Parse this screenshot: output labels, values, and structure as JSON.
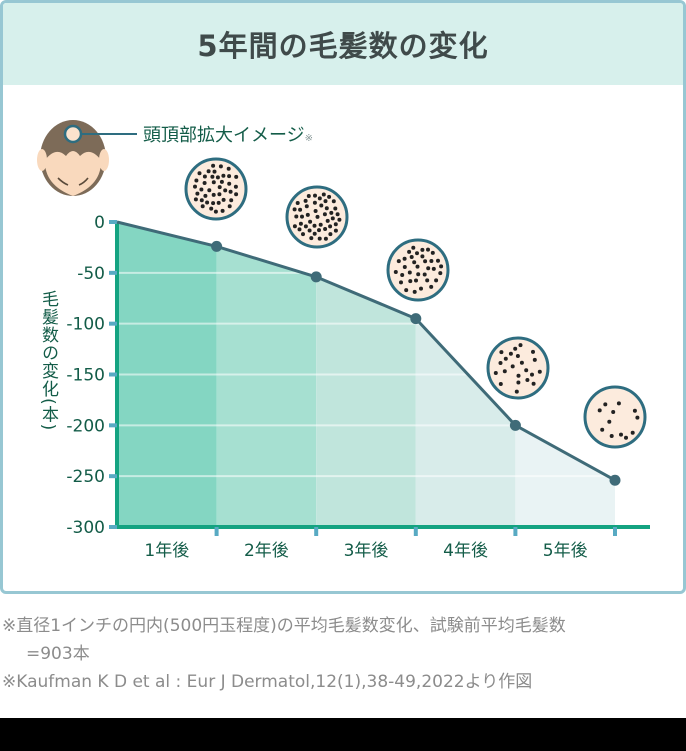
{
  "title": "5年間の毛髪数の変化",
  "legend": {
    "label": "頭頂部拡大イメージ",
    "note_mark": "※",
    "icon": "head-crown-magnify-icon"
  },
  "colors": {
    "border": "#97c7d3",
    "header_bg": "#d7f0ec",
    "title_text": "#3f4a4a",
    "axis": "#14a381",
    "tick": "#58aac3",
    "line": "#3f6b78",
    "label_text": "#135c48",
    "band_fills": [
      "#84d6c2",
      "#a6e0d1",
      "#c0e5dc",
      "#d8ecea",
      "#e9f3f4"
    ],
    "scalp_fill": "#fcebdd",
    "scalp_border": "#2e6d80",
    "hair_dot": "#222222"
  },
  "chart_data": {
    "type": "area",
    "title": "5年間の毛髪数の変化",
    "xlabel": "",
    "ylabel": "毛髪数の変化(本)",
    "categories": [
      "1年後",
      "2年後",
      "3年後",
      "4年後",
      "5年後"
    ],
    "x": [
      0,
      1,
      2,
      3,
      4,
      5
    ],
    "values": [
      0,
      -24,
      -54,
      -95,
      -200,
      -254
    ],
    "yticks": [
      0,
      -50,
      -100,
      -150,
      -200,
      -250,
      -300
    ],
    "ylim": [
      -300,
      0
    ],
    "grid": true,
    "legend_position": "top-left",
    "annotations": [
      "頭頂部拡大イメージ※ (scalp magnification circles above each point, hair density decreasing)"
    ]
  },
  "axis": {
    "y_tick_labels": [
      "0",
      "-50",
      "-100",
      "-150",
      "-200",
      "-250",
      "-300"
    ],
    "y_title": "毛髪数の変化(本)",
    "x_labels": [
      "1年後",
      "2年後",
      "3年後",
      "4年後",
      "5年後"
    ]
  },
  "notes": [
    "※直径1インチの円内(500円玉程度)の平均毛髪数変化、試験前平均毛髪数",
    "=903本",
    "※Kaufman K D et al : Eur J Dermatol,12(1),38-49,2022より作図"
  ]
}
